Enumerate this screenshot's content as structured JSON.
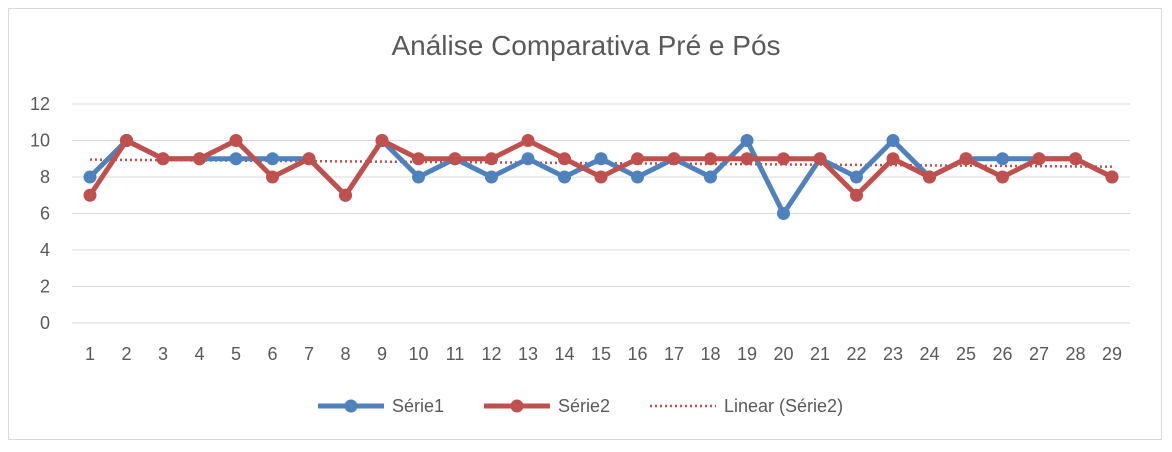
{
  "chart_data": {
    "type": "line",
    "title": "Análise Comparativa Pré e Pós",
    "xlabel": "",
    "ylabel": "",
    "categories": [
      "1",
      "2",
      "3",
      "4",
      "5",
      "6",
      "7",
      "8",
      "9",
      "10",
      "11",
      "12",
      "13",
      "14",
      "15",
      "16",
      "17",
      "18",
      "19",
      "20",
      "21",
      "22",
      "23",
      "24",
      "25",
      "26",
      "27",
      "28",
      "29"
    ],
    "ylim": [
      0,
      12
    ],
    "yticks": [
      0,
      2,
      4,
      6,
      8,
      10,
      12
    ],
    "grid": true,
    "legend_position": "bottom",
    "series": [
      {
        "name": "Série1",
        "color": "#4f81bd",
        "values": [
          8,
          10,
          9,
          9,
          9,
          9,
          9,
          7,
          10,
          8,
          9,
          8,
          9,
          8,
          9,
          8,
          9,
          8,
          10,
          6,
          9,
          8,
          10,
          8,
          9,
          9,
          9,
          9,
          8
        ]
      },
      {
        "name": "Série2",
        "color": "#c0504d",
        "values": [
          7,
          10,
          9,
          9,
          10,
          8,
          9,
          7,
          10,
          9,
          9,
          9,
          10,
          9,
          8,
          9,
          9,
          9,
          9,
          9,
          9,
          7,
          9,
          8,
          9,
          8,
          9,
          9,
          8
        ]
      }
    ],
    "trendline": {
      "name": "Linear (Série2)",
      "color": "#c0504d",
      "of_series": "Série2",
      "style": "dotted"
    }
  }
}
